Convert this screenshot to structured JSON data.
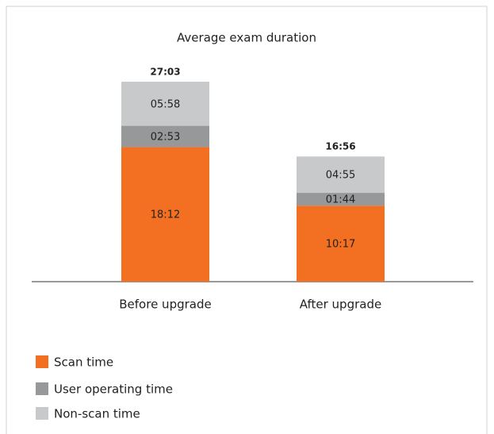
{
  "chart_data": {
    "type": "stacked-bar",
    "title": "Average exam duration",
    "categories": [
      "Before upgrade",
      "After upgrade"
    ],
    "series": [
      {
        "name": "Scan time",
        "color": "#f36f21",
        "values": [
          1092,
          617
        ],
        "value_labels": [
          "18:12",
          "10:17"
        ]
      },
      {
        "name": "User operating time",
        "color": "#97989a",
        "values": [
          173,
          104
        ],
        "value_labels": [
          "02:53",
          "01:44"
        ]
      },
      {
        "name": "Non-scan time",
        "color": "#c8c9cb",
        "values": [
          358,
          295
        ],
        "value_labels": [
          "05:58",
          "04:55"
        ]
      }
    ],
    "totals": [
      1623,
      1016
    ],
    "total_labels": [
      "27:03",
      "16:56"
    ],
    "ylim": [
      0,
      1800
    ]
  }
}
